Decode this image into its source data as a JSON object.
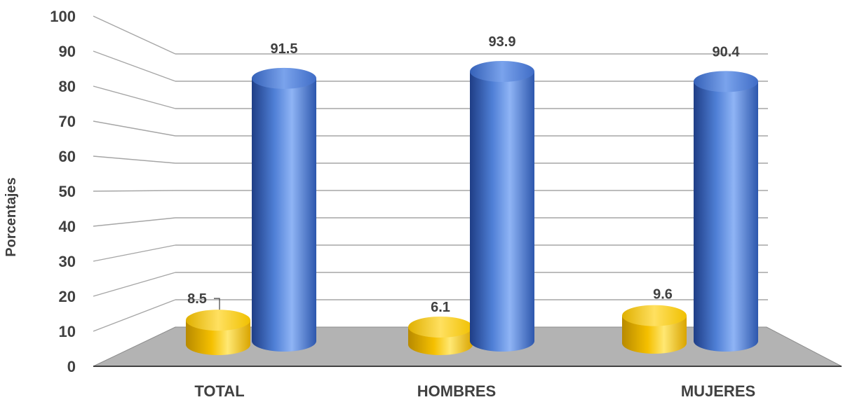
{
  "chart_data": {
    "type": "bar",
    "style": "3d-cylinder",
    "title": "",
    "xlabel": "",
    "ylabel": "Porcentajes",
    "ylim": [
      0,
      100
    ],
    "yticks": [
      0,
      10,
      20,
      30,
      40,
      50,
      60,
      70,
      80,
      90,
      100
    ],
    "grid": true,
    "legend": "none",
    "categories": [
      "TOTAL",
      "HOMBRES",
      "MUJERES"
    ],
    "series": [
      {
        "color": "#ffc000",
        "values": [
          8.5,
          6.1,
          9.6
        ]
      },
      {
        "color": "#4472c4",
        "values": [
          91.5,
          93.9,
          90.4
        ]
      }
    ],
    "data_labels": [
      [
        "8.5",
        "6.1",
        "9.6"
      ],
      [
        "91.5",
        "93.9",
        "90.4"
      ]
    ]
  }
}
